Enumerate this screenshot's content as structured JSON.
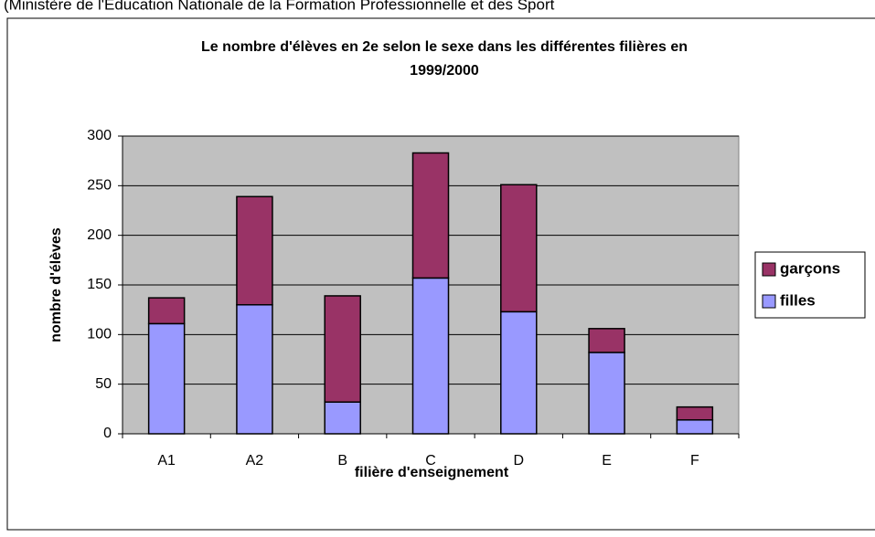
{
  "chart_data": {
    "type": "stacked_bar",
    "source": "(Ministère de l'Education Nationale de la Formation Professionnelle et des Sport",
    "title": [
      "Le nombre d'élèves en 2e selon le sexe dans les différentes filières en",
      "1999/2000"
    ],
    "x_label": "filière d'enseignement",
    "y_label": "nombre d'élèves",
    "categories": [
      "A1",
      "A2",
      "B",
      "C",
      "D",
      "E",
      "F"
    ],
    "series": [
      {
        "name": "filles",
        "color": "#9999ff",
        "values": [
          111,
          130,
          32,
          157,
          123,
          82,
          14
        ]
      },
      {
        "name": "garçons",
        "color": "#993366",
        "values": [
          26,
          109,
          107,
          126,
          128,
          24,
          13
        ]
      }
    ],
    "ylim": [
      0,
      300
    ],
    "yticks": [
      0,
      50,
      100,
      150,
      200,
      250,
      300
    ],
    "grid": true,
    "legend": "right",
    "plot_background": "#c0c0c0"
  }
}
